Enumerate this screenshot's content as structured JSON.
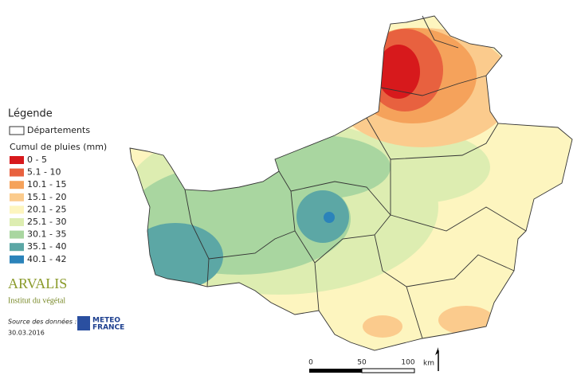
{
  "legend": {
    "title": "Légende",
    "boundary": "Départements",
    "subtitle": "Cumul de pluies (mm)",
    "classes": [
      {
        "label": "0 - 5",
        "color": "#d7191c"
      },
      {
        "label": "5.1 - 10",
        "color": "#e8613f"
      },
      {
        "label": "10.1 - 15",
        "color": "#f5a25b"
      },
      {
        "label": "15.1 - 20",
        "color": "#fbcb8d"
      },
      {
        "label": "20.1 - 25",
        "color": "#fdf5bf"
      },
      {
        "label": "25.1 - 30",
        "color": "#ddedb1"
      },
      {
        "label": "30.1 - 35",
        "color": "#a9d6a0"
      },
      {
        "label": "35.1 - 40",
        "color": "#5ca7a5"
      },
      {
        "label": "40.1 - 42",
        "color": "#2b83ba"
      }
    ]
  },
  "logo": {
    "name": "ARVALIS",
    "tagline": "Institut du végétal"
  },
  "source": {
    "label": "Source des données :",
    "date": "30.03.2016",
    "provider": [
      "METEO",
      "FRANCE"
    ]
  },
  "scale": {
    "ticks": [
      0,
      50,
      100
    ],
    "unit": "km"
  }
}
